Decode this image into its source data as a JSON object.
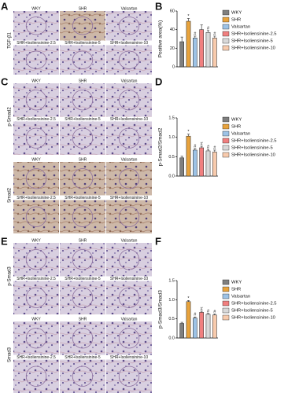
{
  "panels": [
    {
      "letter": "A",
      "blocks": [
        {
          "row_label": "TGF-β1",
          "image_labels": [
            "WKY",
            "SHR",
            "Valsartan",
            "SHR+Isoliensinine-2.5",
            "SHR+Isoliensinine-5",
            "SHR+Isoliensinine-10"
          ]
        }
      ]
    },
    {
      "letter": "C",
      "blocks": [
        {
          "row_label": "p-Smad2",
          "image_labels": [
            "WKY",
            "SHR",
            "Valsartan",
            "SHR+Isoliensinine-2.5",
            "SHR+Isoliensinine-5",
            "SHR+Isoliensinine-10"
          ]
        },
        {
          "row_label": "Smad2",
          "image_labels": [
            "WKY",
            "SHR",
            "Valsartan",
            "SHR+Isoliensinine-2.5",
            "SHR+Isoliensinine-5",
            "SHR+Isoliensinine-10"
          ]
        }
      ]
    },
    {
      "letter": "E",
      "blocks": [
        {
          "row_label": "p-Smad3",
          "image_labels": [
            "WKY",
            "SHR",
            "Valsartan",
            "SHR+Isoliensinine-2.5",
            "SHR+Isoliensinine-5",
            "SHR+Isoliensinine-10"
          ]
        },
        {
          "row_label": "Smad3",
          "image_labels": [
            "WKY",
            "SHR",
            "Valsartan",
            "SHR+Isoliensinine-2.5",
            "SHR+Isoliensinine-5",
            "SHR+Isoliensinine-10"
          ]
        }
      ]
    }
  ],
  "chart_data": [
    {
      "type": "bar",
      "letter": "B",
      "y_label": "Positive area(%)",
      "categories": [
        "WKY",
        "SHR",
        "Valsartan",
        "SHR+Isoliensinine-2.5",
        "SHR+Isoliensinine-5",
        "SHR+Isoliensinine-10"
      ],
      "colors": [
        "#7f7f7f",
        "#e8a33d",
        "#9dc3e6",
        "#f07f7f",
        "#d9d9d9",
        "#f8cbad"
      ],
      "values": [
        27,
        49,
        31,
        40,
        37,
        31
      ],
      "errors": [
        5,
        3,
        2,
        5,
        2,
        2
      ],
      "markers": [
        null,
        "*",
        "#",
        null,
        "#",
        "#"
      ],
      "ylim": [
        0,
        60
      ],
      "yticks": [
        0,
        20,
        40,
        60
      ]
    },
    {
      "type": "bar",
      "letter": "D",
      "y_label": "p-Smad2/Smad2",
      "categories": [
        "WKY",
        "SHR",
        "Valsartan",
        "SHR+Isoliensinine-2.5",
        "SHR+Isoliensinine-5",
        "SHR+Isoliensinine-10"
      ],
      "colors": [
        "#7f7f7f",
        "#e8a33d",
        "#9dc3e6",
        "#f07f7f",
        "#d9d9d9",
        "#f8cbad"
      ],
      "values": [
        0.47,
        1.03,
        0.67,
        0.73,
        0.65,
        0.62
      ],
      "errors": [
        0.04,
        0.05,
        0.04,
        0.04,
        0.04,
        0.05
      ],
      "markers": [
        null,
        "*",
        "#",
        "#",
        "#",
        "#"
      ],
      "ylim": [
        0,
        1.5
      ],
      "yticks": [
        {
          "value": 0,
          "label": "0.0"
        },
        0.5,
        {
          "value": 1,
          "label": "1.0"
        },
        1.5
      ]
    },
    {
      "type": "bar",
      "letter": "F",
      "y_label": "p-Smad3/Smad3",
      "categories": [
        "WKY",
        "SHR",
        "Valsartan",
        "SHR+Isoliensinine-2.5",
        "SHR+Isoliensinine-5",
        "SHR+Isoliensinine-10"
      ],
      "colors": [
        "#7f7f7f",
        "#e8a33d",
        "#9dc3e6",
        "#f07f7f",
        "#d9d9d9",
        "#f8cbad"
      ],
      "values": [
        0.38,
        0.95,
        0.52,
        0.67,
        0.62,
        0.6
      ],
      "errors": [
        0.03,
        0.03,
        0.03,
        0.03,
        0.02,
        0.03
      ],
      "markers": [
        null,
        "*",
        "#",
        "#",
        "#",
        "#"
      ],
      "ylim": [
        0,
        1.5
      ],
      "yticks": [
        {
          "value": 0,
          "label": "0.0"
        },
        0.5,
        {
          "value": 1,
          "label": "1.0"
        },
        1.5
      ]
    }
  ]
}
